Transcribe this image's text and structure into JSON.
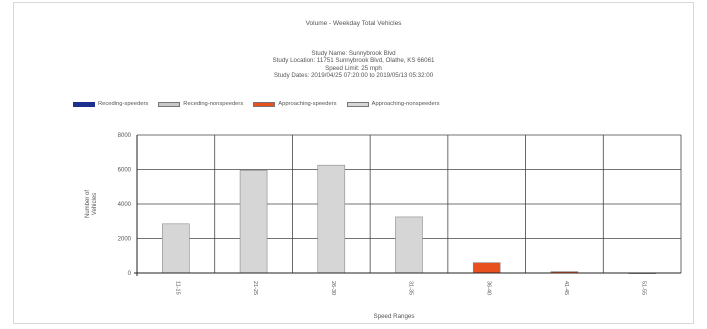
{
  "chart_data": {
    "type": "bar",
    "title": "Volume - Weekday Total Vehicles",
    "study_info": [
      "Study Name: Sunnybrook Blvd",
      "Study Location: 11751 Sunnybrook Blvd, Olathe, KS 66061",
      "Speed Limit: 25 mph",
      "Study Dates: 2019/04/25 07:20:00 to 2019/05/13 05:32:00"
    ],
    "xlabel": "Speed Ranges",
    "ylabel": "Number of Vehicles",
    "categories": [
      "11-15",
      "21-25",
      "26-30",
      "31-35",
      "36-40",
      "41-45",
      "51-55"
    ],
    "ylim": [
      0,
      8000
    ],
    "yticks": [
      0,
      2000,
      4000,
      6000,
      8000
    ],
    "grid": true,
    "legend_position": "top-left",
    "series": [
      {
        "name": "Receding-speeders",
        "color": "#1f2f8f",
        "values": [
          0,
          0,
          0,
          0,
          0,
          0,
          0
        ]
      },
      {
        "name": "Receding-nonspeeders",
        "color": "#c8c8c8",
        "values": [
          0,
          0,
          0,
          0,
          0,
          0,
          0
        ]
      },
      {
        "name": "Approaching-speeders",
        "color": "#e8501e",
        "values": [
          0,
          0,
          0,
          0,
          600,
          80,
          10
        ]
      },
      {
        "name": "Approaching-nonspeeders",
        "color": "#d6d6d6",
        "values": [
          2850,
          5950,
          6250,
          3250,
          0,
          0,
          0
        ]
      }
    ]
  }
}
